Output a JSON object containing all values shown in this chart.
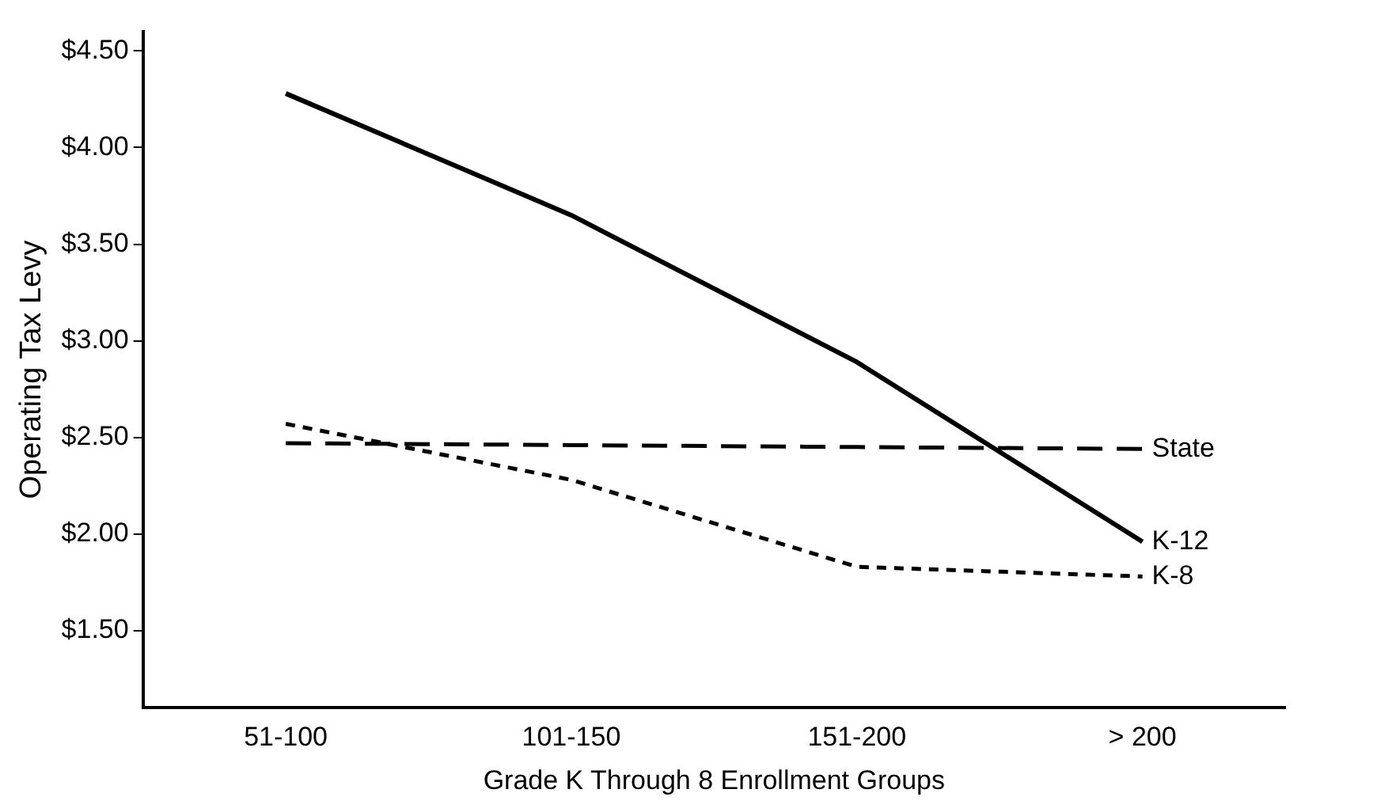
{
  "chart_data": {
    "type": "line",
    "xlabel": "Grade K Through 8 Enrollment Groups",
    "ylabel": "Operating Tax Levy",
    "categories": [
      "51-100",
      "101-150",
      "151-200",
      "> 200"
    ],
    "series": [
      {
        "name": "K-12",
        "color": "#000000",
        "line_style": "solid",
        "values": [
          4.28,
          3.65,
          2.89,
          1.96
        ]
      },
      {
        "name": "K-8",
        "color": "#000000",
        "line_style": "dotted",
        "values": [
          2.57,
          2.28,
          1.83,
          1.78
        ]
      },
      {
        "name": "State",
        "color": "#000000",
        "line_style": "dashed",
        "values": [
          2.47,
          2.46,
          2.45,
          2.44
        ]
      }
    ],
    "ylim": [
      1.1,
      4.6
    ],
    "yticks": [
      {
        "value": 1.5,
        "label": "$1.50"
      },
      {
        "value": 2,
        "label": "$2.00"
      },
      {
        "value": 2.5,
        "label": "$2.50"
      },
      {
        "value": 3,
        "label": "$3.00"
      },
      {
        "value": 3.5,
        "label": "$3.50"
      },
      {
        "value": 4,
        "label": "$4.00"
      },
      {
        "value": 4.5,
        "label": "$4.50"
      }
    ],
    "grid": false,
    "legend": false,
    "marker": "none"
  }
}
